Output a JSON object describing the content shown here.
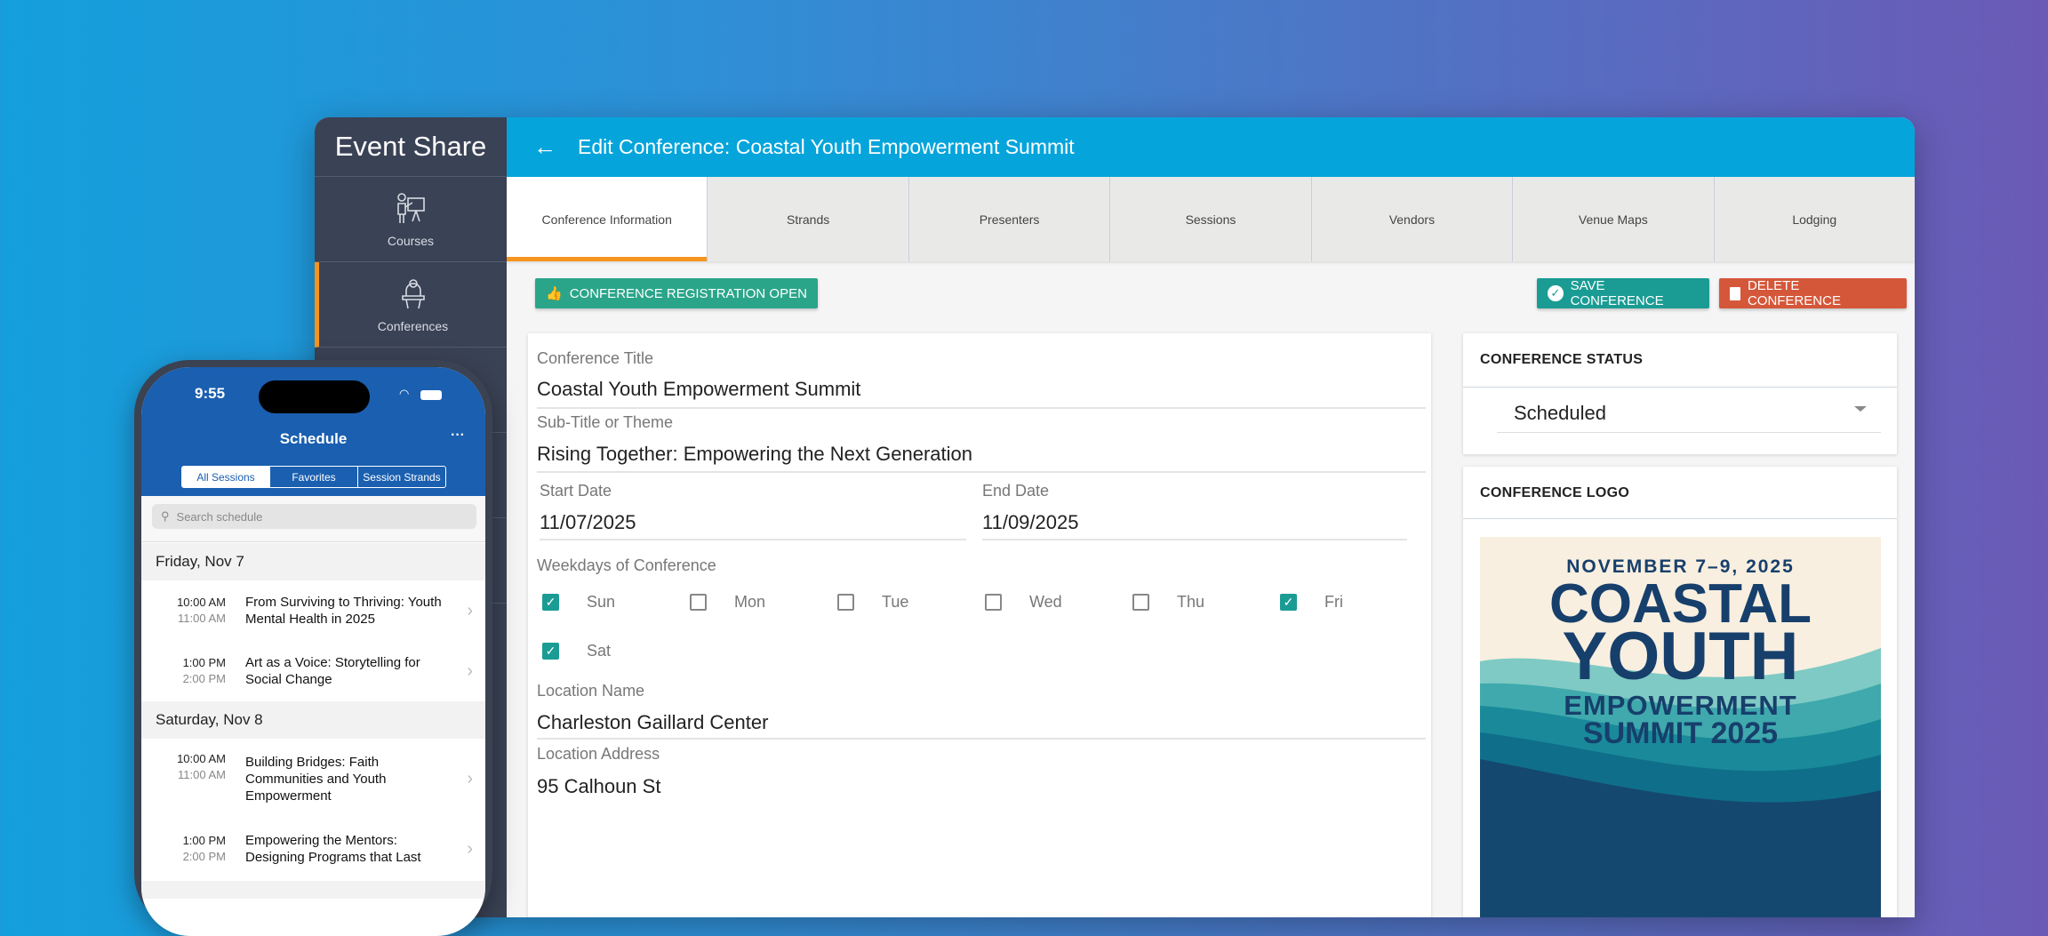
{
  "app": {
    "brand": "Event Share",
    "title": "Edit Conference: Coastal Youth Empowerment Summit"
  },
  "sidebar": {
    "items": [
      {
        "label": "Courses",
        "icon": "presenter-board-icon"
      },
      {
        "label": "Conferences",
        "icon": "podium-speaker-icon",
        "active": true
      }
    ]
  },
  "tabs": [
    "Conference Information",
    "Strands",
    "Presenters",
    "Sessions",
    "Vendors",
    "Venue Maps",
    "Lodging"
  ],
  "actions": {
    "registration": "CONFERENCE REGISTRATION OPEN",
    "save": "SAVE CONFERENCE",
    "delete": "DELETE CONFERENCE"
  },
  "form": {
    "title_label": "Conference Title",
    "title": "Coastal Youth Empowerment Summit",
    "subtitle_label": "Sub-Title or Theme",
    "subtitle": "Rising Together: Empowering the Next Generation",
    "start_label": "Start Date",
    "start": "11/07/2025",
    "end_label": "End Date",
    "end": "11/09/2025",
    "weekdays_label": "Weekdays of Conference",
    "weekdays": [
      {
        "day": "Sun",
        "checked": true
      },
      {
        "day": "Mon",
        "checked": false
      },
      {
        "day": "Tue",
        "checked": false
      },
      {
        "day": "Wed",
        "checked": false
      },
      {
        "day": "Thu",
        "checked": false
      },
      {
        "day": "Fri",
        "checked": true
      },
      {
        "day": "Sat",
        "checked": true
      }
    ],
    "location_label": "Location Name",
    "location": "Charleston Gaillard Center",
    "address_label": "Location Address",
    "address": "95 Calhoun St"
  },
  "status": {
    "header": "CONFERENCE STATUS",
    "value": "Scheduled"
  },
  "logo": {
    "header": "CONFERENCE LOGO",
    "dates": "NOVEMBER 7–9, 2025",
    "line1": "COASTAL",
    "line2": "YOUTH",
    "line3": "EMPOWERMENT",
    "line4": "SUMMIT 2025"
  },
  "phone": {
    "time": "9:55",
    "title": "Schedule",
    "more": "···",
    "segments": [
      "All Sessions",
      "Favorites",
      "Session Strands"
    ],
    "search_placeholder": "Search schedule",
    "days": [
      {
        "label": "Friday, Nov 7",
        "sessions": [
          {
            "start": "10:00 AM",
            "end": "11:00 AM",
            "title": "From Surviving to Thriving: Youth Mental Health in 2025"
          },
          {
            "start": "1:00 PM",
            "end": "2:00 PM",
            "title": "Art as a Voice: Storytelling for Social Change"
          }
        ]
      },
      {
        "label": "Saturday, Nov 8",
        "sessions": [
          {
            "start": "10:00 AM",
            "end": "11:00 AM",
            "title": "Building Bridges: Faith Communities and Youth Empowerment"
          },
          {
            "start": "1:00 PM",
            "end": "2:00 PM",
            "title": "Empowering the Mentors: Designing Programs that Last"
          }
        ]
      }
    ]
  },
  "colors": {
    "header": "#05a5dc",
    "sidebar": "#3a4255",
    "accent": "#f7941d",
    "save": "#1a9c94",
    "delete": "#d5573a",
    "registration": "#2aa58a",
    "phone_header": "#1a5fb0"
  }
}
